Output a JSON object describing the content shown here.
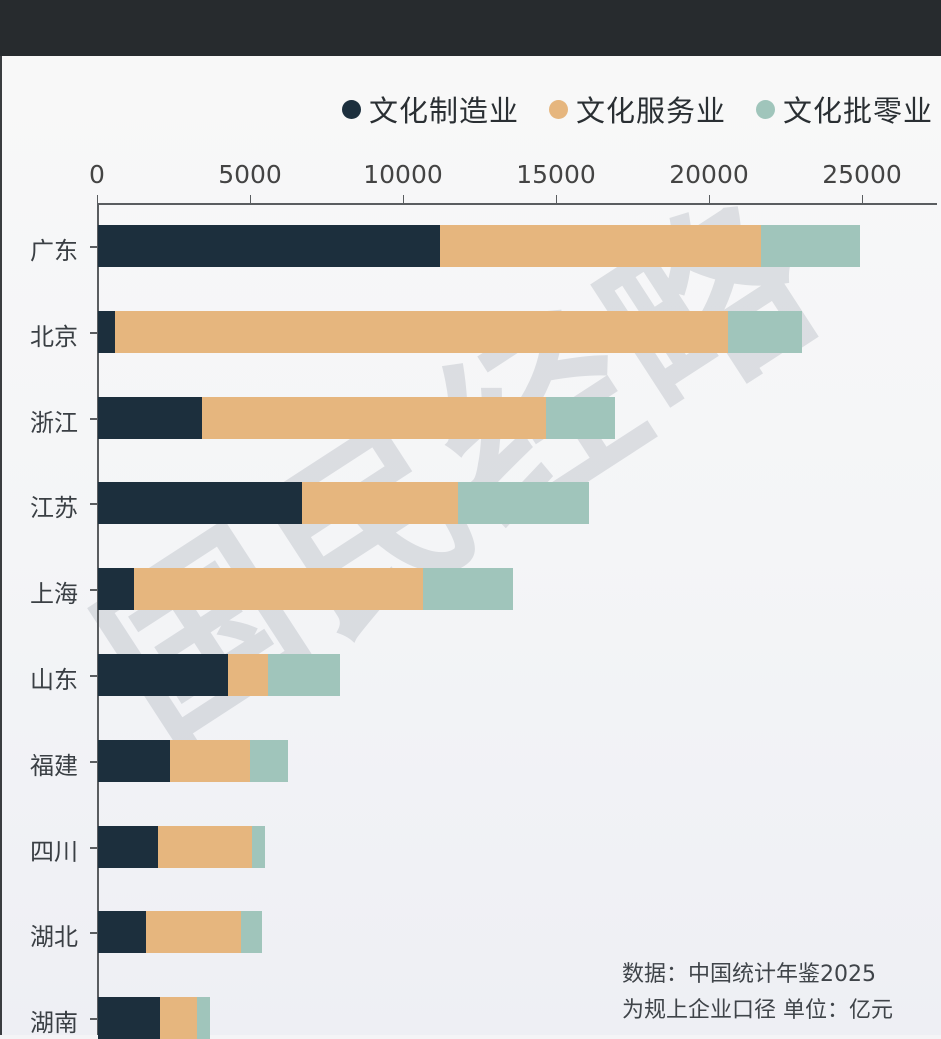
{
  "legend": [
    {
      "label": "文化制造业",
      "color": "#1c2f3d"
    },
    {
      "label": "文化服务业",
      "color": "#e6b67e"
    },
    {
      "label": "文化批零业",
      "color": "#a0c5bb"
    }
  ],
  "axis": {
    "ticks": [
      "0",
      "5000",
      "10000",
      "15000",
      "20000",
      "25000"
    ]
  },
  "watermark": "国民经略",
  "source": {
    "line1": "数据：中国统计年鉴2025",
    "line2": "为规上企业口径 单位：亿元"
  },
  "chart_data": {
    "type": "bar",
    "orientation": "horizontal",
    "stacked": true,
    "title": "",
    "xlabel": "",
    "ylabel": "",
    "xlim": [
      0,
      27500
    ],
    "x_ticks": [
      0,
      5000,
      10000,
      15000,
      20000,
      25000
    ],
    "axis_position": "top",
    "grid": false,
    "legend_position": "top-right",
    "categories": [
      "广东",
      "北京",
      "浙江",
      "江苏",
      "上海",
      "山东",
      "福建",
      "四川",
      "湖北",
      "湖南"
    ],
    "series": [
      {
        "name": "文化制造业",
        "color": "#1c2f3d",
        "values": [
          11180,
          560,
          3400,
          6670,
          1180,
          4250,
          2350,
          1960,
          1570,
          2030
        ]
      },
      {
        "name": "文化服务业",
        "color": "#e6b67e",
        "values": [
          10490,
          20030,
          11240,
          5100,
          9450,
          1310,
          2610,
          3070,
          3100,
          1210
        ]
      },
      {
        "name": "文化批零业",
        "color": "#a0c5bb",
        "values": [
          3230,
          2420,
          2260,
          4280,
          2940,
          2350,
          1240,
          430,
          690,
          430
        ]
      }
    ],
    "annotations": [
      "数据：中国统计年鉴2025",
      "为规上企业口径 单位：亿元"
    ],
    "unit": "亿元"
  }
}
